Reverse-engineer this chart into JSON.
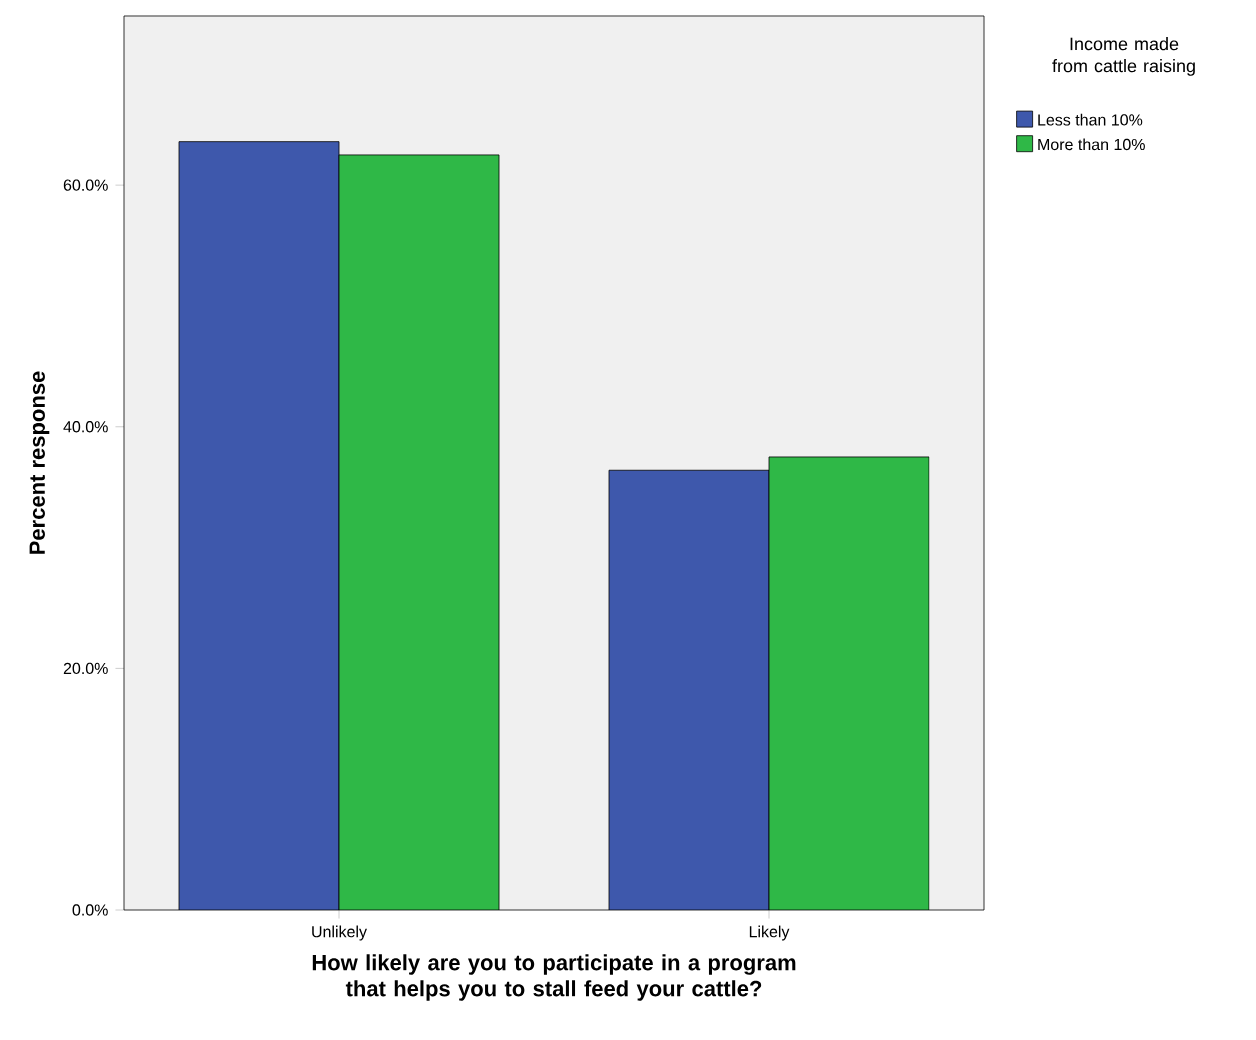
{
  "chart_data": {
    "type": "bar",
    "xlabel": "How likely are you to participate in a program that helps you to stall feed your cattle?",
    "ylabel": "Percent response",
    "legend_title": "Income made from cattle raising",
    "categories": [
      "Unlikely",
      "Likely"
    ],
    "series": [
      {
        "name": "Less than 10%",
        "color": "#3e58ac",
        "values": [
          63.6,
          36.4
        ]
      },
      {
        "name": "More than 10%",
        "color": "#2fb847",
        "values": [
          62.5,
          37.5
        ]
      }
    ],
    "ylim": [
      0,
      74
    ],
    "yticks": [
      {
        "value": 0,
        "label": "0.0%"
      },
      {
        "value": 20,
        "label": "20.0%"
      },
      {
        "value": 40,
        "label": "40.0%"
      },
      {
        "value": 60,
        "label": "60.0%"
      }
    ],
    "grid": false,
    "legend": "top right"
  }
}
